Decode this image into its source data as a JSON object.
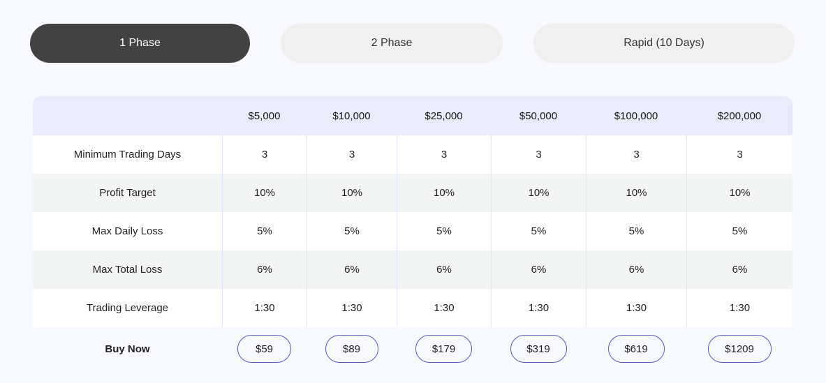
{
  "tabs": [
    {
      "label": "1 Phase",
      "active": true
    },
    {
      "label": "2 Phase",
      "active": false
    },
    {
      "label": "Rapid (10 Days)",
      "active": false
    }
  ],
  "table": {
    "header_blank": "",
    "columns": [
      "$5,000",
      "$10,000",
      "$25,000",
      "$50,000",
      "$100,000",
      "$200,000"
    ],
    "rows": [
      {
        "label": "Minimum Trading Days",
        "values": [
          "3",
          "3",
          "3",
          "3",
          "3",
          "3"
        ]
      },
      {
        "label": "Profit Target",
        "values": [
          "10%",
          "10%",
          "10%",
          "10%",
          "10%",
          "10%"
        ]
      },
      {
        "label": "Max Daily Loss",
        "values": [
          "5%",
          "5%",
          "5%",
          "5%",
          "5%",
          "5%"
        ]
      },
      {
        "label": "Max Total Loss",
        "values": [
          "6%",
          "6%",
          "6%",
          "6%",
          "6%",
          "6%"
        ]
      },
      {
        "label": "Trading Leverage",
        "values": [
          "1:30",
          "1:30",
          "1:30",
          "1:30",
          "1:30",
          "1:30"
        ]
      }
    ],
    "buy": {
      "label": "Buy Now",
      "prices": [
        "$59",
        "$89",
        "$179",
        "$319",
        "$619",
        "$1209"
      ]
    }
  },
  "colors": {
    "active_tab": "#424242",
    "inactive_tab": "#f0f0f0",
    "header_bg": "#e9ebfb",
    "button_border": "#5a58c9"
  }
}
